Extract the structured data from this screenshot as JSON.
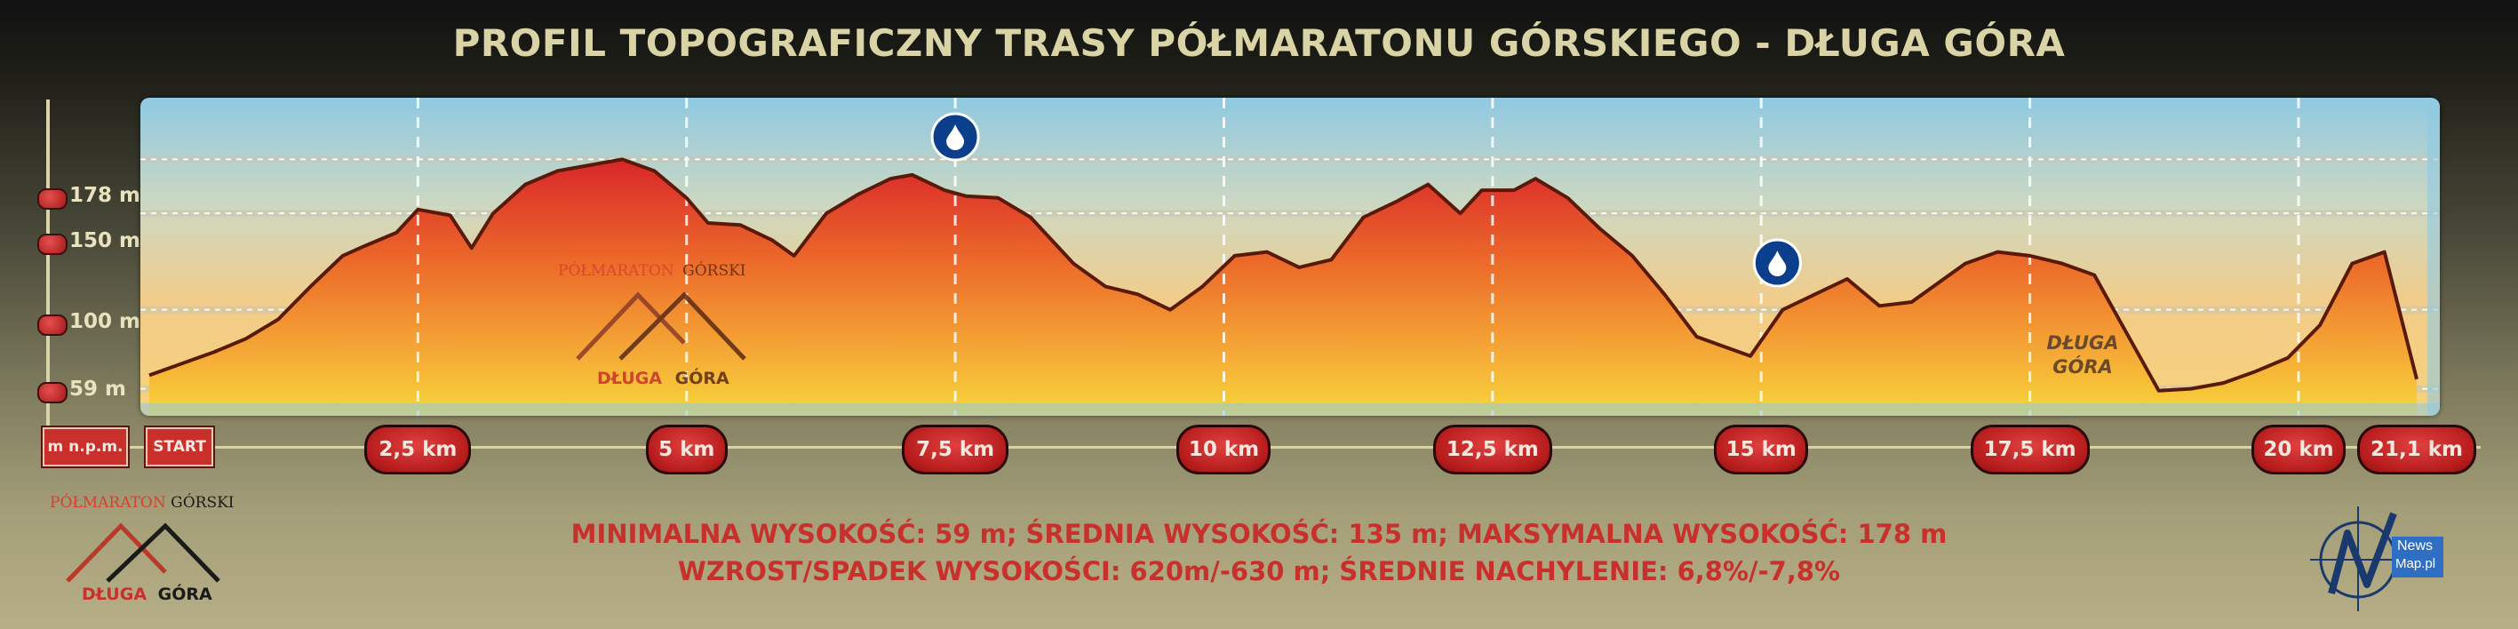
{
  "title": "PROFIL TOPOGRAFICZNY TRASY PÓŁMARATONU GÓRSKIEGO - DŁUGA GÓRA",
  "unit_label": "m n.p.m.",
  "start_label": "START",
  "summit_label_line1": "DŁUGA",
  "summit_label_line2": "GÓRA",
  "brand": {
    "name_part1": "PÓŁMARATON",
    "name_part2": "GÓRSKI",
    "sub_part1": "DŁUGA",
    "sub_part2": "GÓRA"
  },
  "stats": {
    "line1": "MINIMALNA WYSOKOŚĆ: 59 m; ŚREDNIA WYSOKOŚĆ: 135 m; MAKSYMALNA WYSOKOŚĆ: 178 m",
    "line2": "WZROST/SPADEK WYSOKOŚCI: 620m/-630 m; ŚREDNIE NACHYLENIE: 6,8%/-7,8%"
  },
  "newsmap": {
    "line1": "News",
    "line2": "Map.pl"
  },
  "water_icon": "water-drop-icon",
  "colors": {
    "accent_red": "#c9302c",
    "profile_line": "#5a1a0a",
    "sky_top": "#8fc8e0",
    "title": "#d9d3a6"
  },
  "chart_data": {
    "type": "area",
    "title": "PROFIL TOPOGRAFICZNY TRASY PÓŁMARATONU GÓRSKIEGO - DŁUGA GÓRA",
    "xlabel": "",
    "ylabel": "m n.p.m.",
    "xlim": [
      0,
      21.1
    ],
    "ylim": [
      45,
      210
    ],
    "y_ticks": [
      59,
      100,
      150,
      178
    ],
    "y_tick_labels": [
      "59 m",
      "100 m",
      "150 m",
      "178 m"
    ],
    "x_ticks": [
      2.5,
      5,
      7.5,
      10,
      12.5,
      15,
      17.5,
      20,
      21.1
    ],
    "x_tick_labels": [
      "2,5 km",
      "5 km",
      "7,5 km",
      "10 km",
      "12,5 km",
      "15 km",
      "17,5 km",
      "20 km",
      "21,1 km"
    ],
    "water_points_km": [
      7.5,
      15.15
    ],
    "grid": true,
    "series": [
      {
        "x": [
          0,
          0.3,
          0.6,
          0.9,
          1.2,
          1.5,
          1.8,
          2.0,
          2.3,
          2.5,
          2.8,
          3.0,
          3.2,
          3.5,
          3.8,
          4.1,
          4.4,
          4.7,
          5.0,
          5.2,
          5.5,
          5.8,
          6.0,
          6.3,
          6.6,
          6.9,
          7.1,
          7.4,
          7.6,
          7.9,
          8.2,
          8.6,
          8.9,
          9.2,
          9.5,
          9.8,
          10.1,
          10.4,
          10.7,
          11.0,
          11.3,
          11.6,
          11.9,
          12.2,
          12.4,
          12.7,
          12.9,
          13.2,
          13.5,
          13.8,
          14.1,
          14.4,
          14.6,
          14.9,
          15.2,
          15.5,
          15.8,
          16.1,
          16.4,
          16.6,
          16.9,
          17.2,
          17.5,
          17.8,
          18.1,
          18.4,
          18.7,
          19.0,
          19.3,
          19.6,
          19.9,
          20.2,
          20.5,
          20.8,
          21.1
        ],
        "values": [
          66,
          72,
          78,
          85,
          95,
          112,
          128,
          133,
          140,
          152,
          149,
          132,
          150,
          165,
          172,
          175,
          178,
          172,
          158,
          145,
          144,
          136,
          128,
          150,
          160,
          168,
          170,
          162,
          159,
          158,
          148,
          124,
          112,
          108,
          100,
          112,
          128,
          130,
          122,
          126,
          148,
          156,
          165,
          150,
          162,
          162,
          168,
          158,
          142,
          128,
          108,
          86,
          82,
          76,
          100,
          108,
          116,
          102,
          104,
          112,
          124,
          130,
          128,
          124,
          118,
          88,
          58,
          59,
          62,
          68,
          75,
          92,
          124,
          130,
          64
        ]
      }
    ]
  }
}
